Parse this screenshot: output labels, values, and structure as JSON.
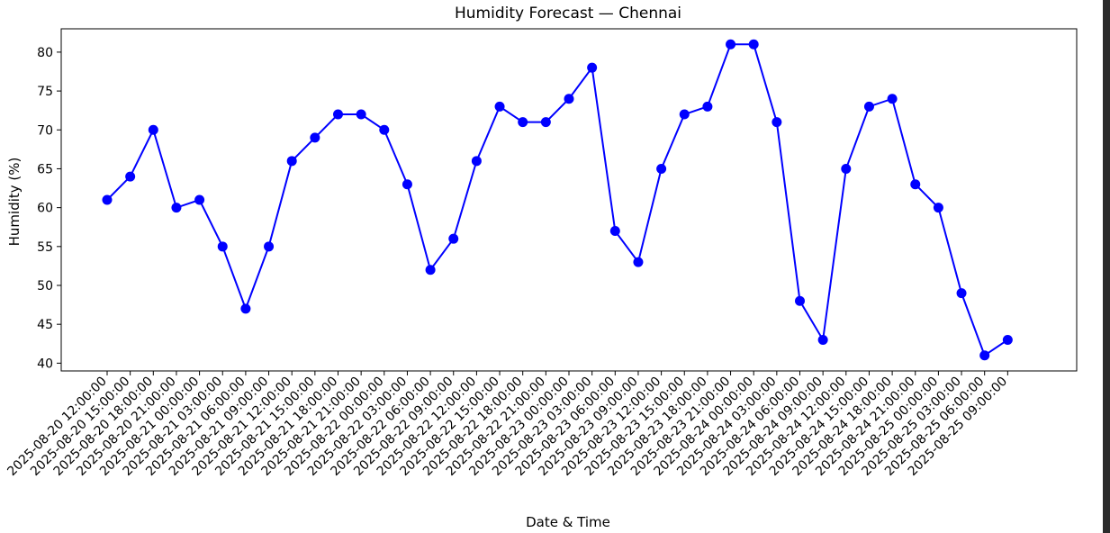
{
  "chart_data": {
    "type": "line",
    "title": "Humidity Forecast — Chennai",
    "xlabel": "Date & Time",
    "ylabel": "Humidity (%)",
    "ylim": [
      39,
      83
    ],
    "yticks": [
      40,
      45,
      50,
      55,
      60,
      65,
      70,
      75,
      80
    ],
    "grid": false,
    "line_color": "#0000ff",
    "marker": "circle",
    "x": [
      "2025-08-20 12:00:00",
      "2025-08-20 15:00:00",
      "2025-08-20 18:00:00",
      "2025-08-20 21:00:00",
      "2025-08-21 00:00:00",
      "2025-08-21 03:00:00",
      "2025-08-21 06:00:00",
      "2025-08-21 09:00:00",
      "2025-08-21 12:00:00",
      "2025-08-21 15:00:00",
      "2025-08-21 18:00:00",
      "2025-08-21 21:00:00",
      "2025-08-22 00:00:00",
      "2025-08-22 03:00:00",
      "2025-08-22 06:00:00",
      "2025-08-22 09:00:00",
      "2025-08-22 12:00:00",
      "2025-08-22 15:00:00",
      "2025-08-22 18:00:00",
      "2025-08-22 21:00:00",
      "2025-08-23 00:00:00",
      "2025-08-23 03:00:00",
      "2025-08-23 06:00:00",
      "2025-08-23 09:00:00",
      "2025-08-23 12:00:00",
      "2025-08-23 15:00:00",
      "2025-08-23 18:00:00",
      "2025-08-23 21:00:00",
      "2025-08-24 00:00:00",
      "2025-08-24 03:00:00",
      "2025-08-24 06:00:00",
      "2025-08-24 09:00:00",
      "2025-08-24 12:00:00",
      "2025-08-24 15:00:00",
      "2025-08-24 18:00:00",
      "2025-08-24 21:00:00",
      "2025-08-25 00:00:00",
      "2025-08-25 03:00:00",
      "2025-08-25 06:00:00",
      "2025-08-25 09:00:00"
    ],
    "values": [
      61,
      64,
      70,
      60,
      61,
      55,
      47,
      55,
      66,
      69,
      72,
      72,
      70,
      63,
      52,
      56,
      66,
      73,
      71,
      71,
      74,
      78,
      57,
      53,
      65,
      72,
      73,
      81,
      81,
      71,
      48,
      43,
      65,
      73,
      74,
      63,
      60,
      49,
      41,
      43
    ]
  }
}
